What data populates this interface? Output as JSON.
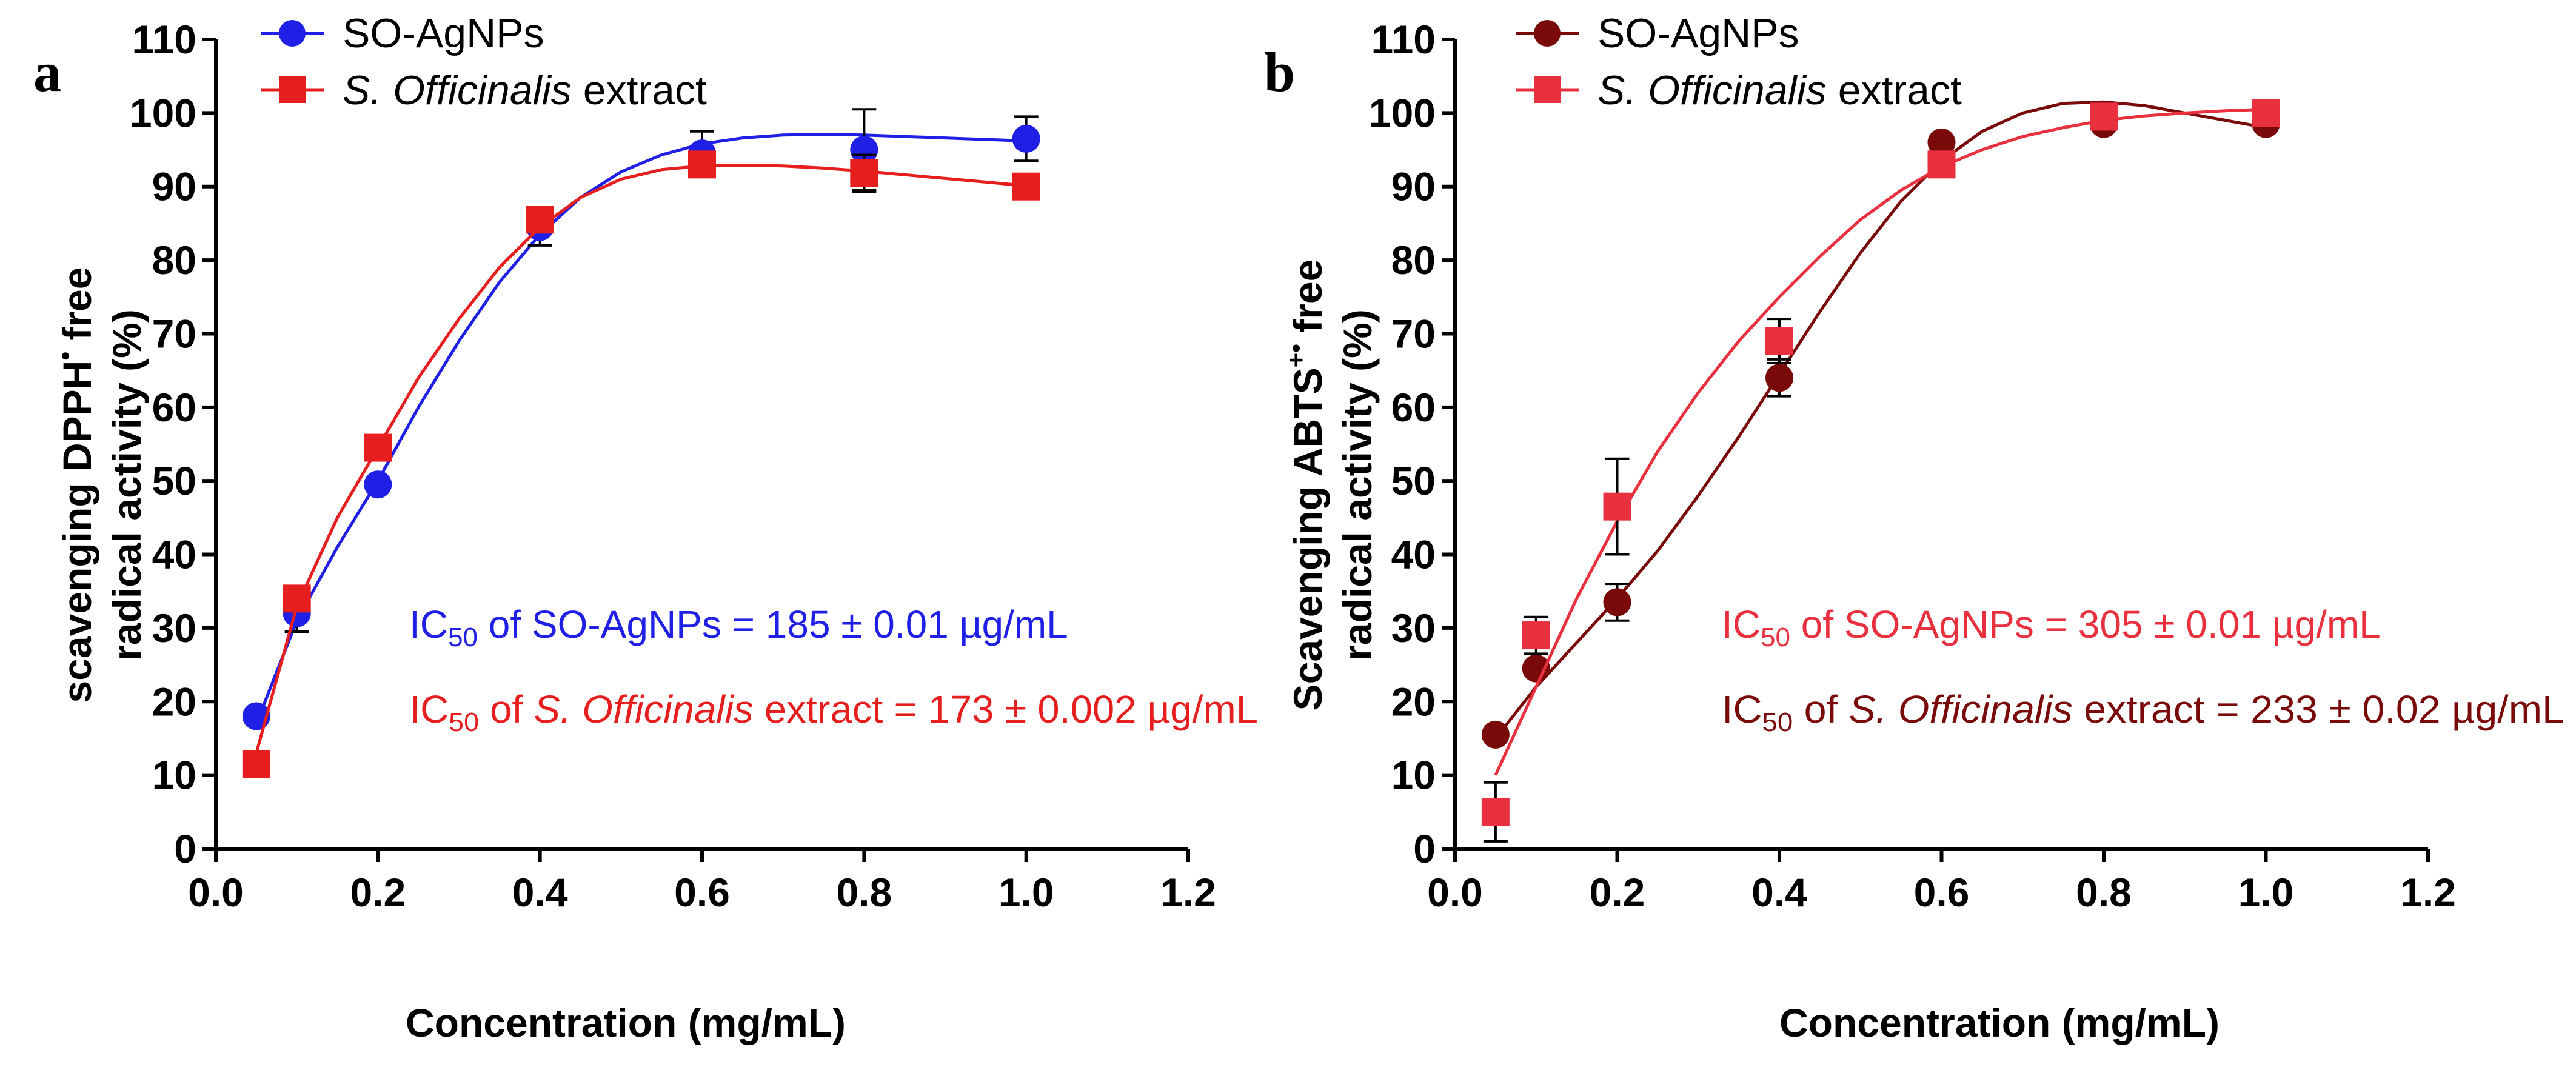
{
  "figure": {
    "panel_a": {
      "letter": "a",
      "ylabel_line1_pre": "scavenging DPPH",
      "ylabel_line1_sup": "•",
      "ylabel_line1_post": " free",
      "ylabel_line2": "radical activity (%)",
      "xlabel": "Concentration (mg/mL)",
      "legend": [
        {
          "label_plain": "SO-AgNPs",
          "label_italic": "",
          "label_rest": ""
        },
        {
          "label_plain": "",
          "label_italic": "S. Officinalis",
          "label_rest": " extract"
        }
      ],
      "annotations": [
        {
          "pre": "IC",
          "sub": "50",
          "mid": " of SO-AgNPs = 185 ± 0.01 µg/mL",
          "italic": "",
          "post": ""
        },
        {
          "pre": "IC",
          "sub": "50",
          "mid": " of ",
          "italic": "S. Officinalis",
          "post": " extract = 173 ± 0.002 µg/mL"
        }
      ]
    },
    "panel_b": {
      "letter": "b",
      "ylabel_line1_pre": "Scavenging ABTS",
      "ylabel_line1_sup": "+•",
      "ylabel_line1_post": " free",
      "ylabel_line2": "radical activity (%)",
      "xlabel": "Concentration (mg/mL)",
      "legend": [
        {
          "label_plain": "SO-AgNPs",
          "label_italic": "",
          "label_rest": ""
        },
        {
          "label_plain": "",
          "label_italic": "S. Officinalis",
          "label_rest": " extract"
        }
      ],
      "annotations": [
        {
          "pre": "IC",
          "sub": "50",
          "mid": " of SO-AgNPs = 305 ± 0.01 µg/mL",
          "italic": "",
          "post": ""
        },
        {
          "pre": "IC",
          "sub": "50",
          "mid": " of ",
          "italic": "S. Officinalis",
          "post": " extract = 233 ± 0.02 µg/mL"
        }
      ]
    }
  },
  "colors": {
    "a_agnps": "#1f1fe6",
    "a_extract": "#e61e1e",
    "b_agnps": "#7a0a0a",
    "b_extract": "#e8303f",
    "axis": "#000000"
  },
  "chart_data": [
    {
      "type": "scatter",
      "panel": "a",
      "xlim": [
        0,
        1.2
      ],
      "ylim": [
        0,
        110
      ],
      "xticks": [
        "0.0",
        "0.2",
        "0.4",
        "0.6",
        "0.8",
        "1.0",
        "1.2"
      ],
      "xtick_values": [
        0,
        0.2,
        0.4,
        0.6,
        0.8,
        1.0,
        1.2
      ],
      "yticks": [
        "0",
        "10",
        "20",
        "30",
        "40",
        "50",
        "60",
        "70",
        "80",
        "90",
        "100",
        "110"
      ],
      "ytick_values": [
        0,
        10,
        20,
        30,
        40,
        50,
        60,
        70,
        80,
        90,
        100,
        110
      ],
      "legend_position": "top-left",
      "series": [
        {
          "name": "SO-AgNPs",
          "marker": "circle",
          "color_key": "a_agnps",
          "x": [
            0.05,
            0.1,
            0.2,
            0.4,
            0.6,
            0.8,
            1.0
          ],
          "y": [
            18,
            32,
            49.5,
            84.5,
            94.5,
            95,
            96.5
          ],
          "err": [
            0,
            2.5,
            0,
            2.5,
            3,
            5.5,
            3
          ],
          "curve_x": [
            0.05,
            0.1,
            0.15,
            0.2,
            0.25,
            0.3,
            0.35,
            0.4,
            0.45,
            0.5,
            0.55,
            0.6,
            0.65,
            0.7,
            0.75,
            0.8,
            0.85,
            0.9,
            0.95,
            1.0
          ],
          "curve_y": [
            17,
            31,
            41,
            50,
            60,
            69,
            77,
            83.5,
            88.5,
            92,
            94.3,
            95.8,
            96.6,
            97,
            97.1,
            97,
            96.8,
            96.6,
            96.4,
            96.2
          ]
        },
        {
          "name": "S. Officinalis extract",
          "marker": "square",
          "color_key": "a_extract",
          "x": [
            0.05,
            0.1,
            0.2,
            0.4,
            0.6,
            0.8,
            1.0
          ],
          "y": [
            11.5,
            34,
            54.5,
            85.5,
            93,
            91.8,
            90
          ],
          "err": [
            0,
            0,
            0,
            1.5,
            1.5,
            2.5,
            0
          ],
          "curve_x": [
            0.05,
            0.1,
            0.15,
            0.2,
            0.25,
            0.3,
            0.35,
            0.4,
            0.45,
            0.5,
            0.55,
            0.6,
            0.65,
            0.7,
            0.75,
            0.8,
            0.85,
            0.9,
            0.95,
            1.0
          ],
          "curve_y": [
            13,
            33,
            45,
            54.5,
            64,
            72,
            79,
            84.5,
            88.5,
            91,
            92.3,
            92.8,
            92.9,
            92.8,
            92.5,
            92.1,
            91.6,
            91.1,
            90.6,
            90.1
          ]
        }
      ]
    },
    {
      "type": "scatter",
      "panel": "b",
      "xlim": [
        0,
        1.2
      ],
      "ylim": [
        0,
        110
      ],
      "xticks": [
        "0.0",
        "0.2",
        "0.4",
        "0.6",
        "0.8",
        "1.0",
        "1.2"
      ],
      "xtick_values": [
        0,
        0.2,
        0.4,
        0.6,
        0.8,
        1.0,
        1.2
      ],
      "yticks": [
        "0",
        "10",
        "20",
        "30",
        "40",
        "50",
        "60",
        "70",
        "80",
        "90",
        "100",
        "110"
      ],
      "ytick_values": [
        0,
        10,
        20,
        30,
        40,
        50,
        60,
        70,
        80,
        90,
        100,
        110
      ],
      "legend_position": "top-left",
      "series": [
        {
          "name": "SO-AgNPs",
          "marker": "circle",
          "color_key": "b_agnps",
          "x": [
            0.05,
            0.1,
            0.2,
            0.4,
            0.6,
            0.8,
            1.0
          ],
          "y": [
            15.5,
            24.5,
            33.5,
            64,
            96,
            98.5,
            98.5
          ],
          "err": [
            0,
            0,
            2.5,
            2.5,
            0,
            0,
            0
          ],
          "curve_x": [
            0.05,
            0.1,
            0.15,
            0.2,
            0.25,
            0.3,
            0.35,
            0.4,
            0.45,
            0.5,
            0.55,
            0.6,
            0.65,
            0.7,
            0.75,
            0.8,
            0.85,
            0.9,
            0.95,
            1.0
          ],
          "curve_y": [
            15,
            22,
            28,
            34,
            40.5,
            48,
            56,
            64.5,
            73,
            81,
            88,
            93.5,
            97.5,
            100,
            101.3,
            101.5,
            101,
            100,
            99,
            98
          ]
        },
        {
          "name": "S. Officinalis extract",
          "marker": "square",
          "color_key": "b_extract",
          "x": [
            0.05,
            0.1,
            0.2,
            0.4,
            0.6,
            0.8,
            1.0
          ],
          "y": [
            5,
            29,
            46.5,
            69,
            93,
            99.5,
            100
          ],
          "err": [
            4,
            2.5,
            6.5,
            3,
            0,
            0,
            0
          ],
          "curve_x": [
            0.05,
            0.1,
            0.15,
            0.2,
            0.25,
            0.3,
            0.35,
            0.4,
            0.45,
            0.5,
            0.55,
            0.6,
            0.65,
            0.7,
            0.75,
            0.8,
            0.85,
            0.9,
            0.95,
            1.0
          ],
          "curve_y": [
            10,
            22,
            34,
            44.5,
            54,
            62,
            69,
            75,
            80.5,
            85.5,
            89.5,
            92.7,
            95,
            96.8,
            98,
            99,
            99.6,
            100,
            100.3,
            100.5
          ]
        }
      ]
    }
  ]
}
